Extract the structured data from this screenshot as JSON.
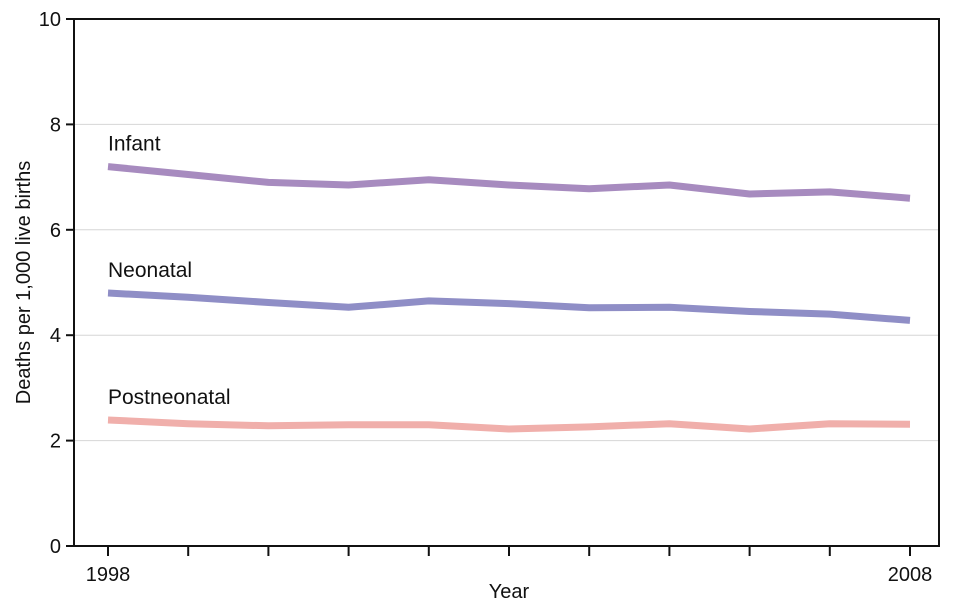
{
  "chart_data": {
    "type": "line",
    "title": "",
    "xlabel": "Year",
    "ylabel": "Deaths per 1,000 live births",
    "x": [
      1998,
      1999,
      2000,
      2001,
      2002,
      2003,
      2004,
      2005,
      2006,
      2007,
      2008
    ],
    "x_tick_labels": [
      {
        "x": 1998,
        "label": "1998"
      },
      {
        "x": 2008,
        "label": "2008"
      }
    ],
    "xlim": [
      1998,
      2008
    ],
    "ylim": [
      0,
      10
    ],
    "y_ticks": [
      0,
      2,
      4,
      6,
      8,
      10
    ],
    "grid": "horizontal",
    "legend": "none",
    "series": [
      {
        "name": "Infant",
        "color": "#a78bbf",
        "values": [
          7.2,
          7.05,
          6.9,
          6.85,
          6.95,
          6.85,
          6.78,
          6.85,
          6.68,
          6.72,
          6.6
        ]
      },
      {
        "name": "Neonatal",
        "color": "#8f8ec6",
        "values": [
          4.8,
          4.72,
          4.62,
          4.53,
          4.65,
          4.6,
          4.52,
          4.53,
          4.45,
          4.4,
          4.28
        ]
      },
      {
        "name": "Postneonatal",
        "color": "#f0afab",
        "values": [
          2.39,
          2.32,
          2.28,
          2.3,
          2.3,
          2.22,
          2.26,
          2.32,
          2.22,
          2.32,
          2.31
        ]
      }
    ]
  }
}
